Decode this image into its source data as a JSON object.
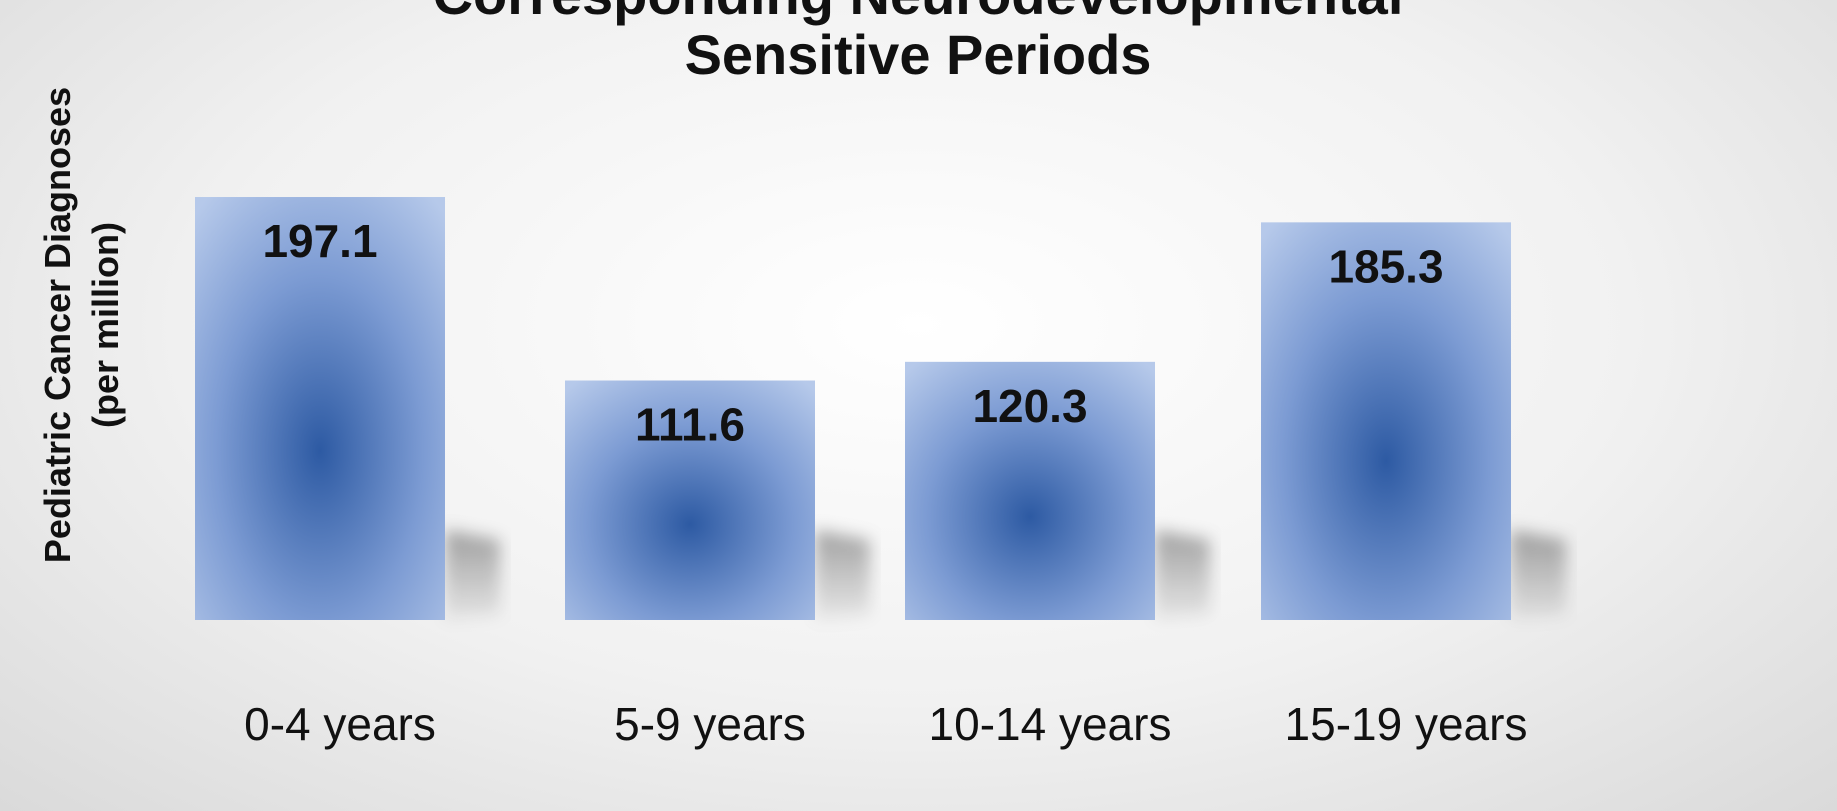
{
  "chart_data": {
    "type": "bar",
    "title": "Corresponding Neurodevelopmental Sensitive Periods",
    "title_lines": [
      "Corresponding Neurodevelopmental",
      "Sensitive Periods"
    ],
    "ylabel": "Pediatric Cancer Diagnoses (per million)",
    "ylabel_lines": [
      "Pediatric Cancer Diagnoses",
      "(per million)"
    ],
    "xlabel": "",
    "categories": [
      "0-4 years",
      "5-9 years",
      "10-14 years",
      "15-19 years"
    ],
    "values": [
      197.1,
      111.6,
      120.3,
      185.3
    ],
    "value_labels": [
      "197.1",
      "111.6",
      "120.3",
      "185.3"
    ],
    "ylim": [
      0,
      210
    ],
    "grid": false,
    "legend": "none",
    "colors": {
      "bar_center": "#2d5aa3",
      "bar_edge": "#b6c9ea",
      "text": "#111111"
    }
  }
}
